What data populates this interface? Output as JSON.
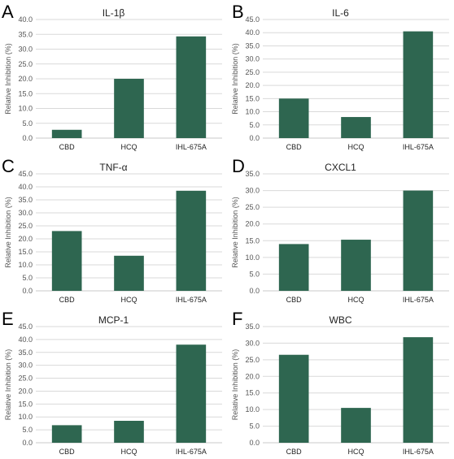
{
  "colors": {
    "bar": "#2e6650",
    "grid": "#d9d9d9",
    "axis": "#c8c8c8"
  },
  "chart_data": [
    {
      "panel": "A",
      "type": "bar",
      "title": "IL-1β",
      "ylabel": "Relative Inhibition (%)",
      "categories": [
        "CBD",
        "HCQ",
        "IHL-675A"
      ],
      "values": [
        2.8,
        20.0,
        34.3
      ],
      "ylim": [
        0,
        40
      ],
      "yticks": [
        "0.0",
        "5.0",
        "10.0",
        "15.0",
        "20.0",
        "25.0",
        "30.0",
        "35.0",
        "40.0"
      ],
      "grid": true
    },
    {
      "panel": "B",
      "type": "bar",
      "title": "IL-6",
      "ylabel": "Relative Inhibition (%)",
      "categories": [
        "CBD",
        "HCQ",
        "IHL-675A"
      ],
      "values": [
        15.0,
        8.0,
        40.5
      ],
      "ylim": [
        0,
        45
      ],
      "yticks": [
        "0.0",
        "5.0",
        "10.0",
        "15.0",
        "20.0",
        "25.0",
        "30.0",
        "35.0",
        "40.0",
        "45.0"
      ],
      "grid": true
    },
    {
      "panel": "C",
      "type": "bar",
      "title": "TNF-α",
      "ylabel": "Relative Inhibition (%)",
      "categories": [
        "CBD",
        "HCQ",
        "IHL-675A"
      ],
      "values": [
        23.0,
        13.5,
        38.5
      ],
      "ylim": [
        0,
        45
      ],
      "yticks": [
        "0.0",
        "5.0",
        "10.0",
        "15.0",
        "20.0",
        "25.0",
        "30.0",
        "35.0",
        "40.0",
        "45.0"
      ],
      "grid": true
    },
    {
      "panel": "D",
      "type": "bar",
      "title": "CXCL1",
      "ylabel": "Relative Inhibition (%)",
      "categories": [
        "CBD",
        "HCQ",
        "IHL-675A"
      ],
      "values": [
        14.0,
        15.3,
        30.0
      ],
      "ylim": [
        0,
        35
      ],
      "yticks": [
        "0.0",
        "5.0",
        "10.0",
        "15.0",
        "20.0",
        "25.0",
        "30.0",
        "35.0"
      ],
      "grid": true
    },
    {
      "panel": "E",
      "type": "bar",
      "title": "MCP-1",
      "ylabel": "Relative Inhibition (%)",
      "categories": [
        "CBD",
        "HCQ",
        "IHL-675A"
      ],
      "values": [
        6.8,
        8.5,
        38.0
      ],
      "ylim": [
        0,
        45
      ],
      "yticks": [
        "0.0",
        "5.0",
        "10.0",
        "15.0",
        "20.0",
        "25.0",
        "30.0",
        "35.0",
        "40.0",
        "45.0"
      ],
      "grid": true
    },
    {
      "panel": "F",
      "type": "bar",
      "title": "WBC",
      "ylabel": "Relative Inhibition (%)",
      "categories": [
        "CBD",
        "HCQ",
        "IHL-675A"
      ],
      "values": [
        26.5,
        10.5,
        31.8
      ],
      "ylim": [
        0,
        35
      ],
      "yticks": [
        "0.0",
        "5.0",
        "10.0",
        "15.0",
        "20.0",
        "25.0",
        "30.0",
        "35.0"
      ],
      "grid": true
    }
  ]
}
